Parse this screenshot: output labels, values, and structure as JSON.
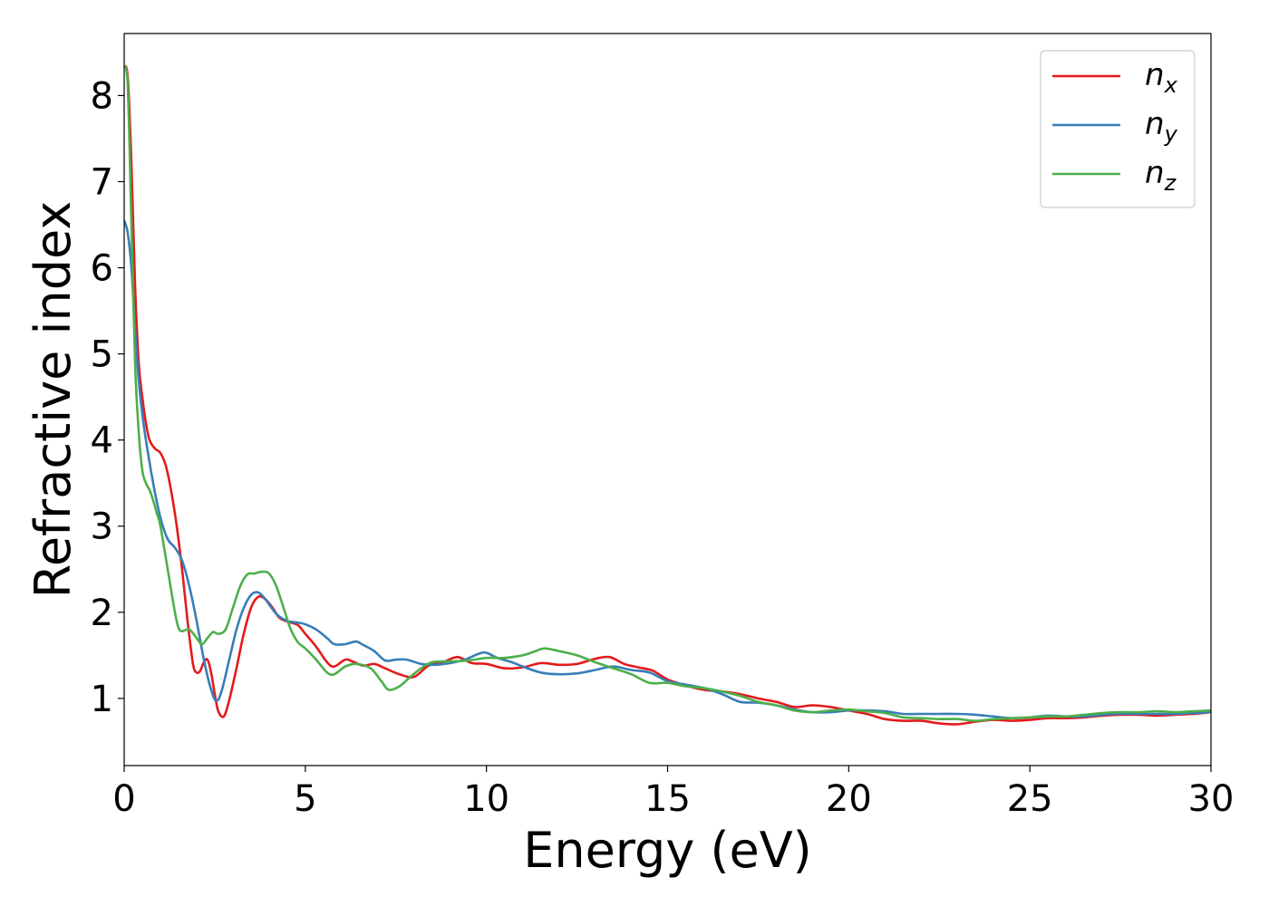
{
  "chart_data": {
    "type": "line",
    "title": "",
    "xlabel": "Energy (eV)",
    "ylabel": "Refractive index",
    "xlim": [
      0,
      30
    ],
    "ylim": [
      0.22,
      8.72
    ],
    "x_ticks": [
      0,
      5,
      10,
      15,
      20,
      25,
      30
    ],
    "y_ticks": [
      1,
      2,
      3,
      4,
      5,
      6,
      7,
      8
    ],
    "grid": false,
    "legend_position": "top-right",
    "series": [
      {
        "name": "n_x",
        "legend_base": "n",
        "legend_sub": "x",
        "color": "#e41a1c",
        "points": [
          [
            0,
            8.35
          ],
          [
            0.1,
            8.2
          ],
          [
            0.2,
            7.2
          ],
          [
            0.3,
            5.8
          ],
          [
            0.4,
            4.9
          ],
          [
            0.5,
            4.5
          ],
          [
            0.6,
            4.2
          ],
          [
            0.7,
            4.0
          ],
          [
            0.85,
            3.9
          ],
          [
            1.0,
            3.85
          ],
          [
            1.15,
            3.7
          ],
          [
            1.3,
            3.4
          ],
          [
            1.45,
            3.0
          ],
          [
            1.6,
            2.5
          ],
          [
            1.75,
            1.9
          ],
          [
            1.9,
            1.4
          ],
          [
            2.0,
            1.3
          ],
          [
            2.1,
            1.32
          ],
          [
            2.2,
            1.42
          ],
          [
            2.3,
            1.45
          ],
          [
            2.4,
            1.3
          ],
          [
            2.5,
            1.05
          ],
          [
            2.6,
            0.85
          ],
          [
            2.75,
            0.79
          ],
          [
            2.9,
            0.98
          ],
          [
            3.1,
            1.35
          ],
          [
            3.3,
            1.75
          ],
          [
            3.5,
            2.05
          ],
          [
            3.7,
            2.18
          ],
          [
            3.9,
            2.15
          ],
          [
            4.1,
            2.05
          ],
          [
            4.3,
            1.93
          ],
          [
            4.6,
            1.88
          ],
          [
            4.8,
            1.85
          ],
          [
            5.0,
            1.75
          ],
          [
            5.3,
            1.6
          ],
          [
            5.6,
            1.42
          ],
          [
            5.8,
            1.37
          ],
          [
            6.1,
            1.45
          ],
          [
            6.3,
            1.43
          ],
          [
            6.6,
            1.38
          ],
          [
            6.9,
            1.4
          ],
          [
            7.2,
            1.35
          ],
          [
            7.6,
            1.28
          ],
          [
            8.0,
            1.25
          ],
          [
            8.4,
            1.38
          ],
          [
            8.8,
            1.42
          ],
          [
            9.2,
            1.48
          ],
          [
            9.6,
            1.41
          ],
          [
            10.0,
            1.4
          ],
          [
            10.5,
            1.35
          ],
          [
            11.0,
            1.36
          ],
          [
            11.5,
            1.41
          ],
          [
            12.0,
            1.39
          ],
          [
            12.5,
            1.4
          ],
          [
            13.0,
            1.46
          ],
          [
            13.4,
            1.48
          ],
          [
            13.8,
            1.4
          ],
          [
            14.2,
            1.36
          ],
          [
            14.6,
            1.32
          ],
          [
            15.0,
            1.22
          ],
          [
            15.5,
            1.15
          ],
          [
            16.0,
            1.1
          ],
          [
            16.5,
            1.08
          ],
          [
            17.0,
            1.05
          ],
          [
            17.5,
            1.0
          ],
          [
            18.0,
            0.96
          ],
          [
            18.5,
            0.9
          ],
          [
            19.0,
            0.92
          ],
          [
            19.5,
            0.9
          ],
          [
            20.0,
            0.86
          ],
          [
            20.5,
            0.82
          ],
          [
            21.0,
            0.76
          ],
          [
            21.5,
            0.74
          ],
          [
            22.0,
            0.74
          ],
          [
            22.5,
            0.71
          ],
          [
            23.0,
            0.7
          ],
          [
            23.5,
            0.73
          ],
          [
            24.0,
            0.75
          ],
          [
            24.5,
            0.74
          ],
          [
            25.0,
            0.75
          ],
          [
            25.5,
            0.77
          ],
          [
            26.0,
            0.77
          ],
          [
            26.5,
            0.78
          ],
          [
            27.0,
            0.8
          ],
          [
            27.5,
            0.81
          ],
          [
            28.0,
            0.81
          ],
          [
            28.5,
            0.8
          ],
          [
            29.0,
            0.81
          ],
          [
            29.5,
            0.82
          ],
          [
            30.0,
            0.84
          ]
        ]
      },
      {
        "name": "n_y",
        "legend_base": "n",
        "legend_sub": "y",
        "color": "#377eb8",
        "points": [
          [
            0,
            6.55
          ],
          [
            0.1,
            6.4
          ],
          [
            0.2,
            6.0
          ],
          [
            0.3,
            5.3
          ],
          [
            0.4,
            4.7
          ],
          [
            0.5,
            4.3
          ],
          [
            0.6,
            4.0
          ],
          [
            0.8,
            3.5
          ],
          [
            1.0,
            3.1
          ],
          [
            1.2,
            2.85
          ],
          [
            1.4,
            2.75
          ],
          [
            1.6,
            2.6
          ],
          [
            1.8,
            2.3
          ],
          [
            2.0,
            1.9
          ],
          [
            2.2,
            1.45
          ],
          [
            2.4,
            1.1
          ],
          [
            2.55,
            0.97
          ],
          [
            2.7,
            1.1
          ],
          [
            2.9,
            1.45
          ],
          [
            3.1,
            1.8
          ],
          [
            3.3,
            2.05
          ],
          [
            3.5,
            2.2
          ],
          [
            3.7,
            2.23
          ],
          [
            3.9,
            2.15
          ],
          [
            4.2,
            1.98
          ],
          [
            4.5,
            1.9
          ],
          [
            4.8,
            1.88
          ],
          [
            5.0,
            1.86
          ],
          [
            5.3,
            1.8
          ],
          [
            5.6,
            1.7
          ],
          [
            5.8,
            1.63
          ],
          [
            6.1,
            1.63
          ],
          [
            6.4,
            1.66
          ],
          [
            6.6,
            1.62
          ],
          [
            6.9,
            1.55
          ],
          [
            7.2,
            1.44
          ],
          [
            7.5,
            1.45
          ],
          [
            7.8,
            1.45
          ],
          [
            8.2,
            1.4
          ],
          [
            8.6,
            1.39
          ],
          [
            9.0,
            1.41
          ],
          [
            9.4,
            1.45
          ],
          [
            9.8,
            1.52
          ],
          [
            10.0,
            1.53
          ],
          [
            10.3,
            1.47
          ],
          [
            10.7,
            1.42
          ],
          [
            11.0,
            1.37
          ],
          [
            11.5,
            1.3
          ],
          [
            12.0,
            1.28
          ],
          [
            12.5,
            1.29
          ],
          [
            13.0,
            1.33
          ],
          [
            13.5,
            1.37
          ],
          [
            14.0,
            1.33
          ],
          [
            14.5,
            1.3
          ],
          [
            15.0,
            1.2
          ],
          [
            15.5,
            1.16
          ],
          [
            16.0,
            1.12
          ],
          [
            16.5,
            1.05
          ],
          [
            17.0,
            0.96
          ],
          [
            17.5,
            0.95
          ],
          [
            18.0,
            0.92
          ],
          [
            18.5,
            0.87
          ],
          [
            19.0,
            0.84
          ],
          [
            19.5,
            0.84
          ],
          [
            20.0,
            0.86
          ],
          [
            20.5,
            0.86
          ],
          [
            21.0,
            0.85
          ],
          [
            21.5,
            0.82
          ],
          [
            22.0,
            0.82
          ],
          [
            22.5,
            0.82
          ],
          [
            23.0,
            0.82
          ],
          [
            23.5,
            0.81
          ],
          [
            24.0,
            0.79
          ],
          [
            24.5,
            0.77
          ],
          [
            25.0,
            0.78
          ],
          [
            25.5,
            0.8
          ],
          [
            26.0,
            0.79
          ],
          [
            26.5,
            0.79
          ],
          [
            27.0,
            0.81
          ],
          [
            27.5,
            0.82
          ],
          [
            28.0,
            0.82
          ],
          [
            28.5,
            0.82
          ],
          [
            29.0,
            0.82
          ],
          [
            29.5,
            0.83
          ],
          [
            30.0,
            0.84
          ]
        ]
      },
      {
        "name": "n_z",
        "legend_base": "n",
        "legend_sub": "z",
        "color": "#4daf4a",
        "points": [
          [
            0,
            8.35
          ],
          [
            0.1,
            8.1
          ],
          [
            0.2,
            6.5
          ],
          [
            0.3,
            4.9
          ],
          [
            0.4,
            4.1
          ],
          [
            0.5,
            3.65
          ],
          [
            0.6,
            3.5
          ],
          [
            0.7,
            3.42
          ],
          [
            0.8,
            3.3
          ],
          [
            0.9,
            3.15
          ],
          [
            1.0,
            3.0
          ],
          [
            1.2,
            2.5
          ],
          [
            1.4,
            2.0
          ],
          [
            1.5,
            1.82
          ],
          [
            1.6,
            1.78
          ],
          [
            1.8,
            1.8
          ],
          [
            2.0,
            1.7
          ],
          [
            2.15,
            1.63
          ],
          [
            2.3,
            1.7
          ],
          [
            2.45,
            1.77
          ],
          [
            2.6,
            1.75
          ],
          [
            2.8,
            1.8
          ],
          [
            3.0,
            2.05
          ],
          [
            3.2,
            2.3
          ],
          [
            3.4,
            2.44
          ],
          [
            3.6,
            2.45
          ],
          [
            3.8,
            2.47
          ],
          [
            4.0,
            2.45
          ],
          [
            4.2,
            2.3
          ],
          [
            4.4,
            2.05
          ],
          [
            4.6,
            1.8
          ],
          [
            4.8,
            1.65
          ],
          [
            5.0,
            1.58
          ],
          [
            5.3,
            1.45
          ],
          [
            5.6,
            1.3
          ],
          [
            5.8,
            1.28
          ],
          [
            6.1,
            1.37
          ],
          [
            6.4,
            1.4
          ],
          [
            6.8,
            1.35
          ],
          [
            7.1,
            1.2
          ],
          [
            7.3,
            1.1
          ],
          [
            7.6,
            1.14
          ],
          [
            7.9,
            1.25
          ],
          [
            8.2,
            1.35
          ],
          [
            8.5,
            1.42
          ],
          [
            9.0,
            1.43
          ],
          [
            9.5,
            1.44
          ],
          [
            10.0,
            1.47
          ],
          [
            10.5,
            1.47
          ],
          [
            11.0,
            1.5
          ],
          [
            11.3,
            1.54
          ],
          [
            11.6,
            1.58
          ],
          [
            12.0,
            1.55
          ],
          [
            12.5,
            1.5
          ],
          [
            13.0,
            1.42
          ],
          [
            13.5,
            1.35
          ],
          [
            14.0,
            1.28
          ],
          [
            14.5,
            1.18
          ],
          [
            15.0,
            1.18
          ],
          [
            15.5,
            1.14
          ],
          [
            16.0,
            1.12
          ],
          [
            16.5,
            1.08
          ],
          [
            17.0,
            1.03
          ],
          [
            17.5,
            0.96
          ],
          [
            18.0,
            0.92
          ],
          [
            18.5,
            0.86
          ],
          [
            19.0,
            0.84
          ],
          [
            19.5,
            0.86
          ],
          [
            20.0,
            0.87
          ],
          [
            20.5,
            0.85
          ],
          [
            21.0,
            0.83
          ],
          [
            21.5,
            0.78
          ],
          [
            22.0,
            0.77
          ],
          [
            22.5,
            0.76
          ],
          [
            23.0,
            0.76
          ],
          [
            23.5,
            0.74
          ],
          [
            24.0,
            0.76
          ],
          [
            24.5,
            0.77
          ],
          [
            25.0,
            0.78
          ],
          [
            25.5,
            0.79
          ],
          [
            26.0,
            0.79
          ],
          [
            26.5,
            0.81
          ],
          [
            27.0,
            0.83
          ],
          [
            27.5,
            0.84
          ],
          [
            28.0,
            0.84
          ],
          [
            28.5,
            0.85
          ],
          [
            29.0,
            0.84
          ],
          [
            29.5,
            0.85
          ],
          [
            30.0,
            0.86
          ]
        ]
      }
    ]
  }
}
